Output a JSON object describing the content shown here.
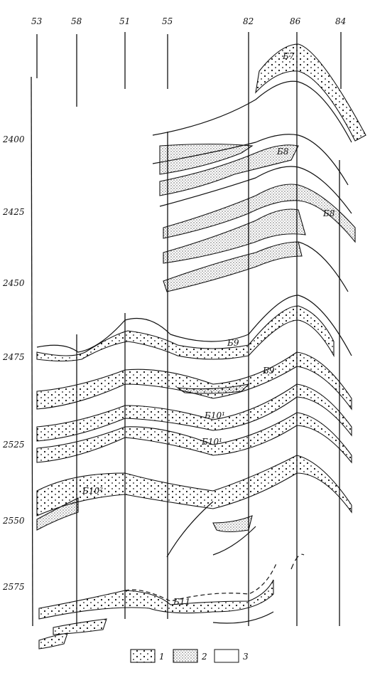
{
  "wells": [
    "53",
    "58",
    "51",
    "55",
    "82",
    "86",
    "84"
  ],
  "depths": [
    "2400",
    "2425",
    "2450",
    "2475",
    "2525",
    "2550",
    "2575"
  ],
  "layers": [
    "Б7",
    "Б8",
    "Б8",
    "Б9",
    "Б9",
    "Б10¹",
    "Б10¹",
    "Б10²",
    "Б11"
  ],
  "legend": [
    "1",
    "2",
    "3"
  ]
}
